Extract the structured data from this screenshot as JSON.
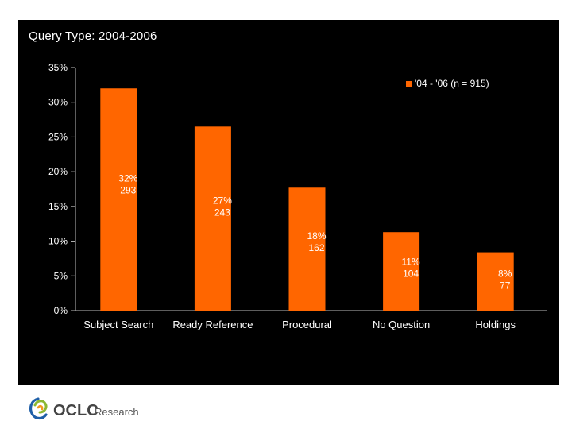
{
  "slide": {
    "title": "Query Type: 2004-2006"
  },
  "chart_data": {
    "type": "bar",
    "title": "Query Type: 2004-2006",
    "xlabel": "",
    "ylabel": "",
    "categories": [
      "Subject Search",
      "Ready Reference",
      "Procedural",
      "No Question",
      "Holdings"
    ],
    "series": [
      {
        "name": "'04 - '06 (n = 915)",
        "values": [
          32,
          26.5,
          17.7,
          11.3,
          8.4
        ],
        "labels_pct": [
          "32%",
          "27%",
          "18%",
          "11%",
          "8%"
        ],
        "labels_count": [
          "293",
          "243",
          "162",
          "104",
          "77"
        ]
      }
    ],
    "ylim": [
      0,
      35
    ],
    "yticks": [
      0,
      5,
      10,
      15,
      20,
      25,
      30,
      35
    ],
    "ytick_labels": [
      "0%",
      "5%",
      "10%",
      "15%",
      "20%",
      "25%",
      "30%",
      "35%"
    ],
    "grid": false,
    "legend": "top-right",
    "colors": {
      "bar": "#FF6600",
      "background": "#000000",
      "text": "#FFFFFF",
      "axis": "#BBBBBB"
    }
  },
  "footer": {
    "logo_text": "OCLC",
    "logo_subtext": "Research",
    "logo_icon": "oclc-swirl-icon"
  }
}
